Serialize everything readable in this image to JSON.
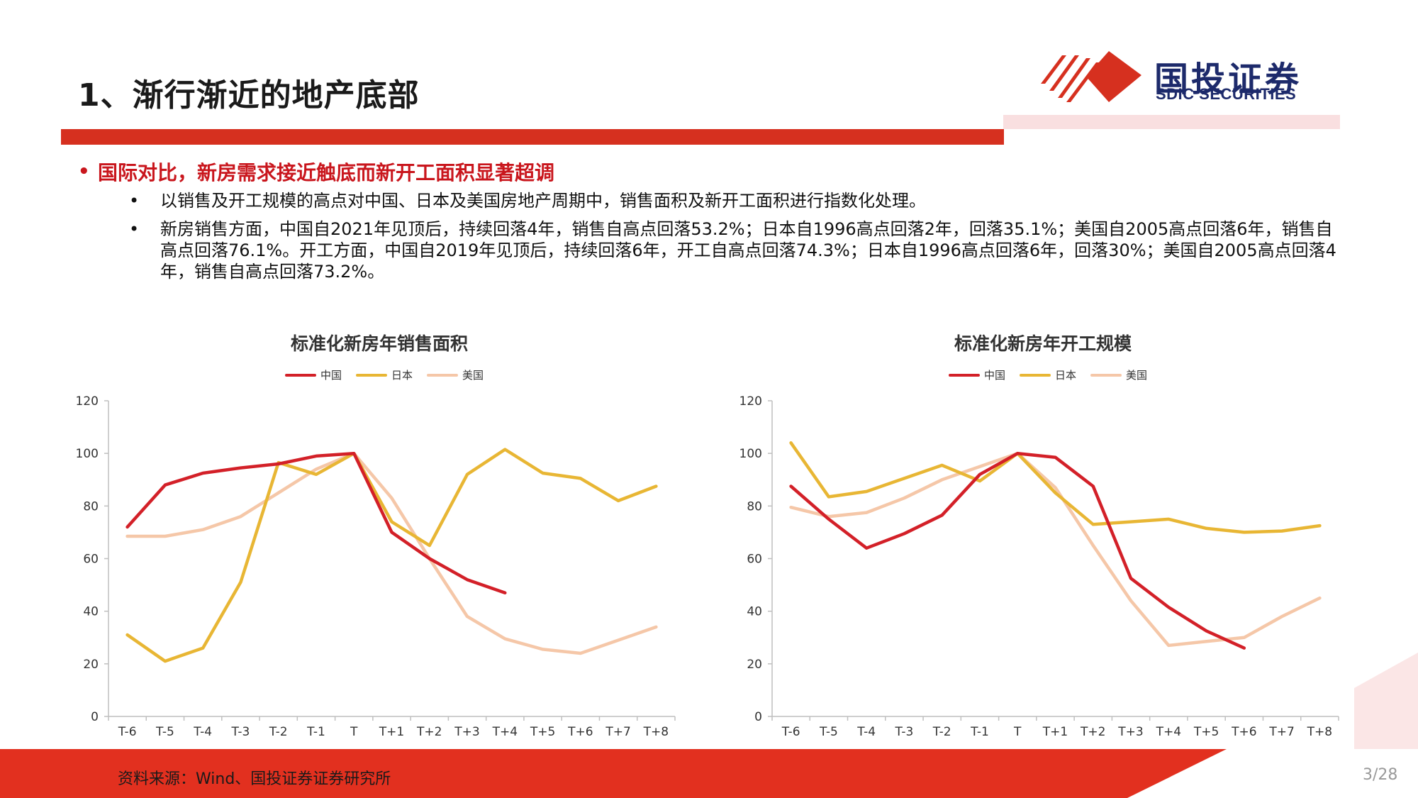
{
  "header": {
    "title": "1、渐行渐近的地产底部",
    "logo_cn": "国投证券",
    "logo_en": "SDIC SECURITIES"
  },
  "bullets": {
    "main": "国际对比，新房需求接近触底而新开工面积显著超调",
    "sub1": "以销售及开工规模的高点对中国、日本及美国房地产周期中，销售面积及新开工面积进行指数化处理。",
    "sub2": "新房销售方面，中国自2021年见顶后，持续回落4年，销售自高点回落53.2%；日本自1996高点回落2年，回落35.1%；美国自2005高点回落6年，销售自高点回落76.1%。开工方面，中国自2019年见顶后，持续回落6年，开工自高点回落74.3%；日本自1996高点回落6年，回落30%；美国自2005高点回落4年，销售自高点回落73.2%。"
  },
  "colors": {
    "china": "#d32028",
    "japan": "#e8b634",
    "usa": "#f5c7a8",
    "brand_red": "#d6301f",
    "brand_navy": "#1d2a6b"
  },
  "chart_data": [
    {
      "type": "line",
      "title": "标准化新房年销售面积",
      "x": [
        "T-6",
        "T-5",
        "T-4",
        "T-3",
        "T-2",
        "T-1",
        "T",
        "T+1",
        "T+2",
        "T+3",
        "T+4",
        "T+5",
        "T+6",
        "T+7",
        "T+8"
      ],
      "ylim": [
        0,
        120
      ],
      "yticks": [
        "0",
        "20",
        "40",
        "60",
        "80",
        "100",
        "120"
      ],
      "series": [
        {
          "name": "中国",
          "values": [
            72,
            88,
            92.5,
            94.5,
            96,
            99,
            100,
            70,
            60,
            52,
            47,
            null,
            null,
            null,
            null
          ]
        },
        {
          "name": "日本",
          "values": [
            31,
            21,
            26,
            51,
            96.5,
            92,
            100,
            74,
            65,
            92,
            101.5,
            92.5,
            90.5,
            82,
            87.5
          ]
        },
        {
          "name": "美国",
          "values": [
            68.5,
            68.5,
            71,
            76,
            85,
            94,
            100,
            83,
            60,
            38,
            29.5,
            25.5,
            24,
            29,
            34
          ]
        }
      ],
      "legend": "top-center",
      "grid": false
    },
    {
      "type": "line",
      "title": "标准化新房年开工规模",
      "x": [
        "T-6",
        "T-5",
        "T-4",
        "T-3",
        "T-2",
        "T-1",
        "T",
        "T+1",
        "T+2",
        "T+3",
        "T+4",
        "T+5",
        "T+6",
        "T+7",
        "T+8"
      ],
      "ylim": [
        0,
        120
      ],
      "yticks": [
        "0",
        "20",
        "40",
        "60",
        "80",
        "100",
        "120"
      ],
      "series": [
        {
          "name": "中国",
          "values": [
            87.5,
            75,
            64,
            69.5,
            76.5,
            92,
            100,
            98.5,
            87.5,
            52.5,
            41.5,
            32.5,
            26,
            null,
            null
          ]
        },
        {
          "name": "日本",
          "values": [
            104,
            83.5,
            85.5,
            90.5,
            95.5,
            89.5,
            100,
            85,
            73,
            74,
            75,
            71.5,
            70,
            70.5,
            72.5
          ]
        },
        {
          "name": "美国",
          "values": [
            79.5,
            76,
            77.5,
            83,
            90,
            95,
            100,
            87,
            65,
            44,
            27,
            28.5,
            30,
            38,
            45
          ]
        }
      ],
      "legend": "top-center",
      "grid": false
    }
  ],
  "footer": {
    "source": "资料来源：Wind、国投证券证券研究所",
    "page": "3/28"
  }
}
